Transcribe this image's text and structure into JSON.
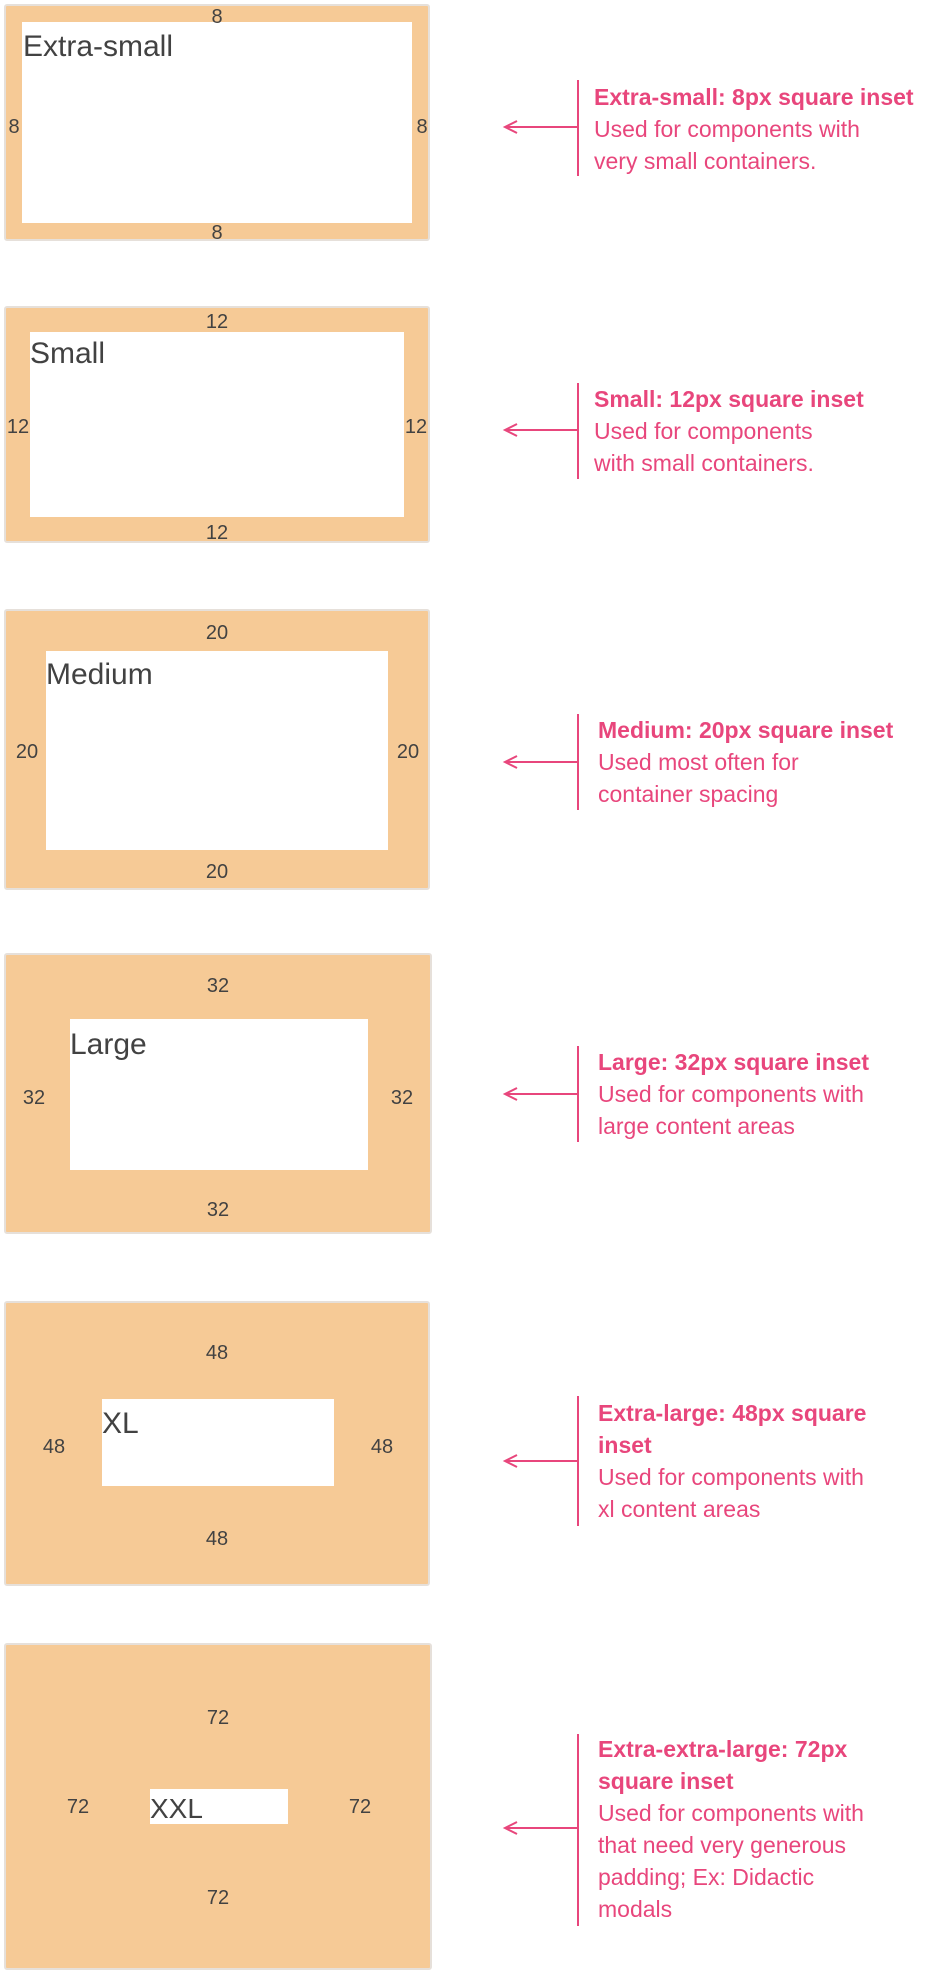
{
  "colors": {
    "panel": "#f6ca96",
    "inner": "#ffffff",
    "text": "#424242",
    "accent": "#e8467c"
  },
  "items": [
    {
      "title": "Extra-small",
      "values": {
        "top": "8",
        "left": "8",
        "right": "8",
        "bottom": "8"
      },
      "heading_lines": [
        "Extra-small: 8px square inset"
      ],
      "desc_lines": [
        "Used for components with",
        "very small containers."
      ]
    },
    {
      "title": "Small",
      "values": {
        "top": "12",
        "left": "12",
        "right": "12",
        "bottom": "12"
      },
      "heading_lines": [
        "Small: 12px square inset"
      ],
      "desc_lines": [
        "Used for components",
        "with small containers."
      ]
    },
    {
      "title": "Medium",
      "values": {
        "top": "20",
        "left": "20",
        "right": "20",
        "bottom": "20"
      },
      "heading_lines": [
        "Medium: 20px square inset"
      ],
      "desc_lines": [
        "Used most often for",
        "container spacing"
      ]
    },
    {
      "title": "Large",
      "values": {
        "top": "32",
        "left": "32",
        "right": "32",
        "bottom": "32"
      },
      "heading_lines": [
        "Large: 32px square inset"
      ],
      "desc_lines": [
        "Used for components with",
        "large content areas"
      ]
    },
    {
      "title": "XL",
      "values": {
        "top": "48",
        "left": "48",
        "right": "48",
        "bottom": "48"
      },
      "heading_lines": [
        "Extra-large: 48px square",
        "inset"
      ],
      "desc_lines": [
        "Used for components with",
        "xl content areas"
      ]
    },
    {
      "title": "XXL",
      "values": {
        "top": "72",
        "left": "72",
        "right": "72",
        "bottom": "72"
      },
      "heading_lines": [
        "Extra-extra-large: 72px",
        "square inset"
      ],
      "desc_lines": [
        "Used for components with",
        "that need very generous",
        "padding; Ex: Didactic",
        "modals"
      ]
    }
  ]
}
